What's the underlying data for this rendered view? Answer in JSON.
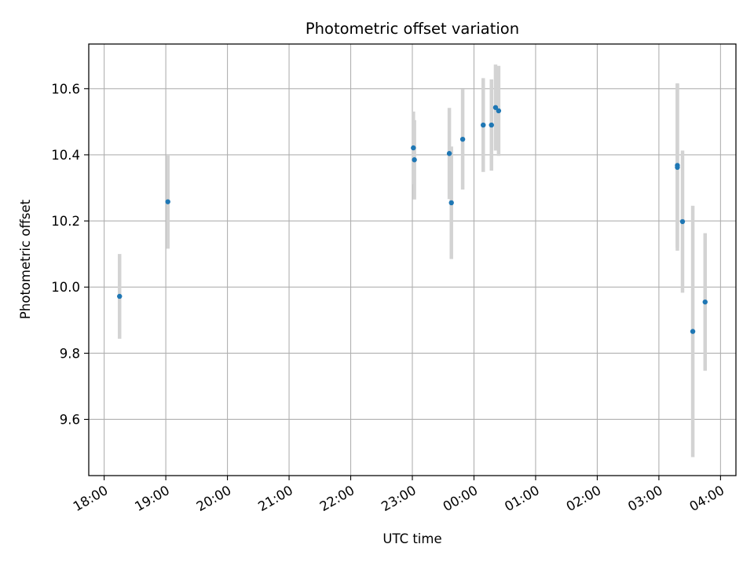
{
  "chart_data": {
    "type": "scatter",
    "title": "Photometric offset variation",
    "xlabel": "UTC time",
    "ylabel": "Photometric offset",
    "x_ticks": [
      "18:00",
      "19:00",
      "20:00",
      "21:00",
      "22:00",
      "23:00",
      "00:00",
      "01:00",
      "02:00",
      "03:00",
      "04:00"
    ],
    "y_ticks": [
      "9.6",
      "9.8",
      "10.0",
      "10.2",
      "10.4",
      "10.6"
    ],
    "xlim": [
      "17:45",
      "04:15"
    ],
    "ylim": [
      9.43,
      10.735
    ],
    "grid": true,
    "point_color": "#1f77b4",
    "errorbar_color": "#d3d3d3",
    "points": [
      {
        "time": "18:15",
        "offset": 9.972,
        "error": 0.128
      },
      {
        "time": "19:02",
        "offset": 10.258,
        "error": 0.142
      },
      {
        "time": "23:01",
        "offset": 10.421,
        "error": 0.11
      },
      {
        "time": "23:02",
        "offset": 10.385,
        "error": 0.12
      },
      {
        "time": "23:36",
        "offset": 10.404,
        "error": 0.138
      },
      {
        "time": "23:38",
        "offset": 10.255,
        "error": 0.17
      },
      {
        "time": "23:49",
        "offset": 10.447,
        "error": 0.152
      },
      {
        "time": "00:09",
        "offset": 10.49,
        "error": 0.142
      },
      {
        "time": "00:17",
        "offset": 10.49,
        "error": 0.138
      },
      {
        "time": "00:21",
        "offset": 10.543,
        "error": 0.13
      },
      {
        "time": "00:24",
        "offset": 10.533,
        "error": 0.136
      },
      {
        "time": "03:18",
        "offset": 10.368,
        "error": 0.248
      },
      {
        "time": "03:18",
        "offset": 10.362,
        "error": 0.252
      },
      {
        "time": "03:23",
        "offset": 10.198,
        "error": 0.215
      },
      {
        "time": "03:33",
        "offset": 9.866,
        "error": 0.38
      },
      {
        "time": "03:45",
        "offset": 9.955,
        "error": 0.208
      }
    ]
  }
}
